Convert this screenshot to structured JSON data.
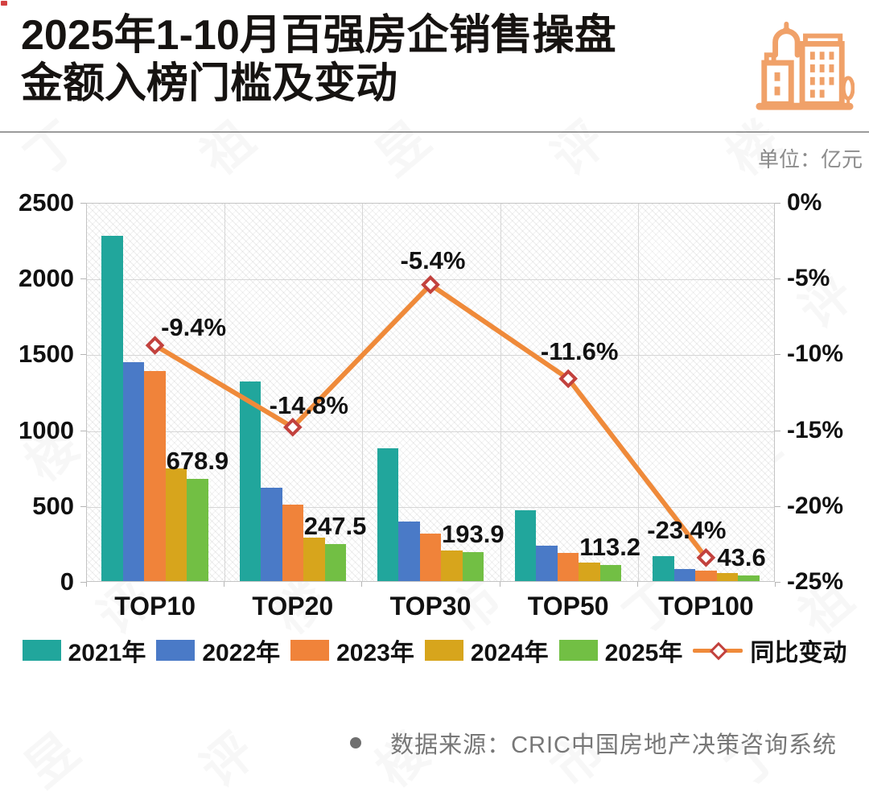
{
  "header": {
    "title_line1": "2025年1-10月百强房企销售操盘",
    "title_line2": "金额入榜门槛及变动",
    "unit_label": "单位：亿元",
    "brand_icon": "buildings-icon",
    "icon_color": "#f0a169"
  },
  "footer": {
    "bullet_icon": "dot-icon",
    "source_text": "数据来源：CRIC中国房地产决策咨询系统"
  },
  "watermark": {
    "text": "丁祖昱评楼市"
  },
  "chart_data": {
    "type": "bar",
    "subtype": "grouped-bars-with-line",
    "unit": "亿元",
    "title": "2025年1-10月百强房企销售操盘金额入榜门槛及变动",
    "categories": [
      "TOP10",
      "TOP20",
      "TOP30",
      "TOP50",
      "TOP100"
    ],
    "series": [
      {
        "name": "2021年",
        "color": "#21a69c",
        "values": [
          2280,
          1320,
          880,
          470,
          170
        ]
      },
      {
        "name": "2022年",
        "color": "#4a7ac7",
        "values": [
          1450,
          620,
          400,
          240,
          85
        ]
      },
      {
        "name": "2023年",
        "color": "#f0833a",
        "values": [
          1390,
          510,
          320,
          190,
          75
        ]
      },
      {
        "name": "2024年",
        "color": "#d7a51c",
        "values": [
          749,
          290,
          205,
          128,
          57
        ]
      },
      {
        "name": "2025年",
        "color": "#72bf44",
        "values": [
          678.9,
          247.5,
          193.9,
          113.2,
          43.6
        ]
      }
    ],
    "bar_value_labels": {
      "series": "2025年",
      "labels": [
        "678.9",
        "247.5",
        "193.9",
        "113.2",
        "43.6"
      ]
    },
    "line_series": {
      "name": "同比变动",
      "color": "#ef8a3a",
      "marker": "diamond",
      "marker_border": "#c2413d",
      "values": [
        -9.4,
        -14.8,
        -5.4,
        -11.6,
        -23.4
      ],
      "labels": [
        "-9.4%",
        "-14.8%",
        "-5.4%",
        "-11.6%",
        "-23.4%"
      ]
    },
    "left_axis": {
      "min": 0,
      "max": 2500,
      "ticks": [
        "2500",
        "2000",
        "1500",
        "1000",
        "500",
        "0"
      ]
    },
    "right_axis": {
      "min": -25,
      "max": 0,
      "ticks": [
        "0%",
        "-5%",
        "-10%",
        "-15%",
        "-20%",
        "-25%"
      ]
    },
    "grid": true,
    "legend_position": "bottom"
  }
}
